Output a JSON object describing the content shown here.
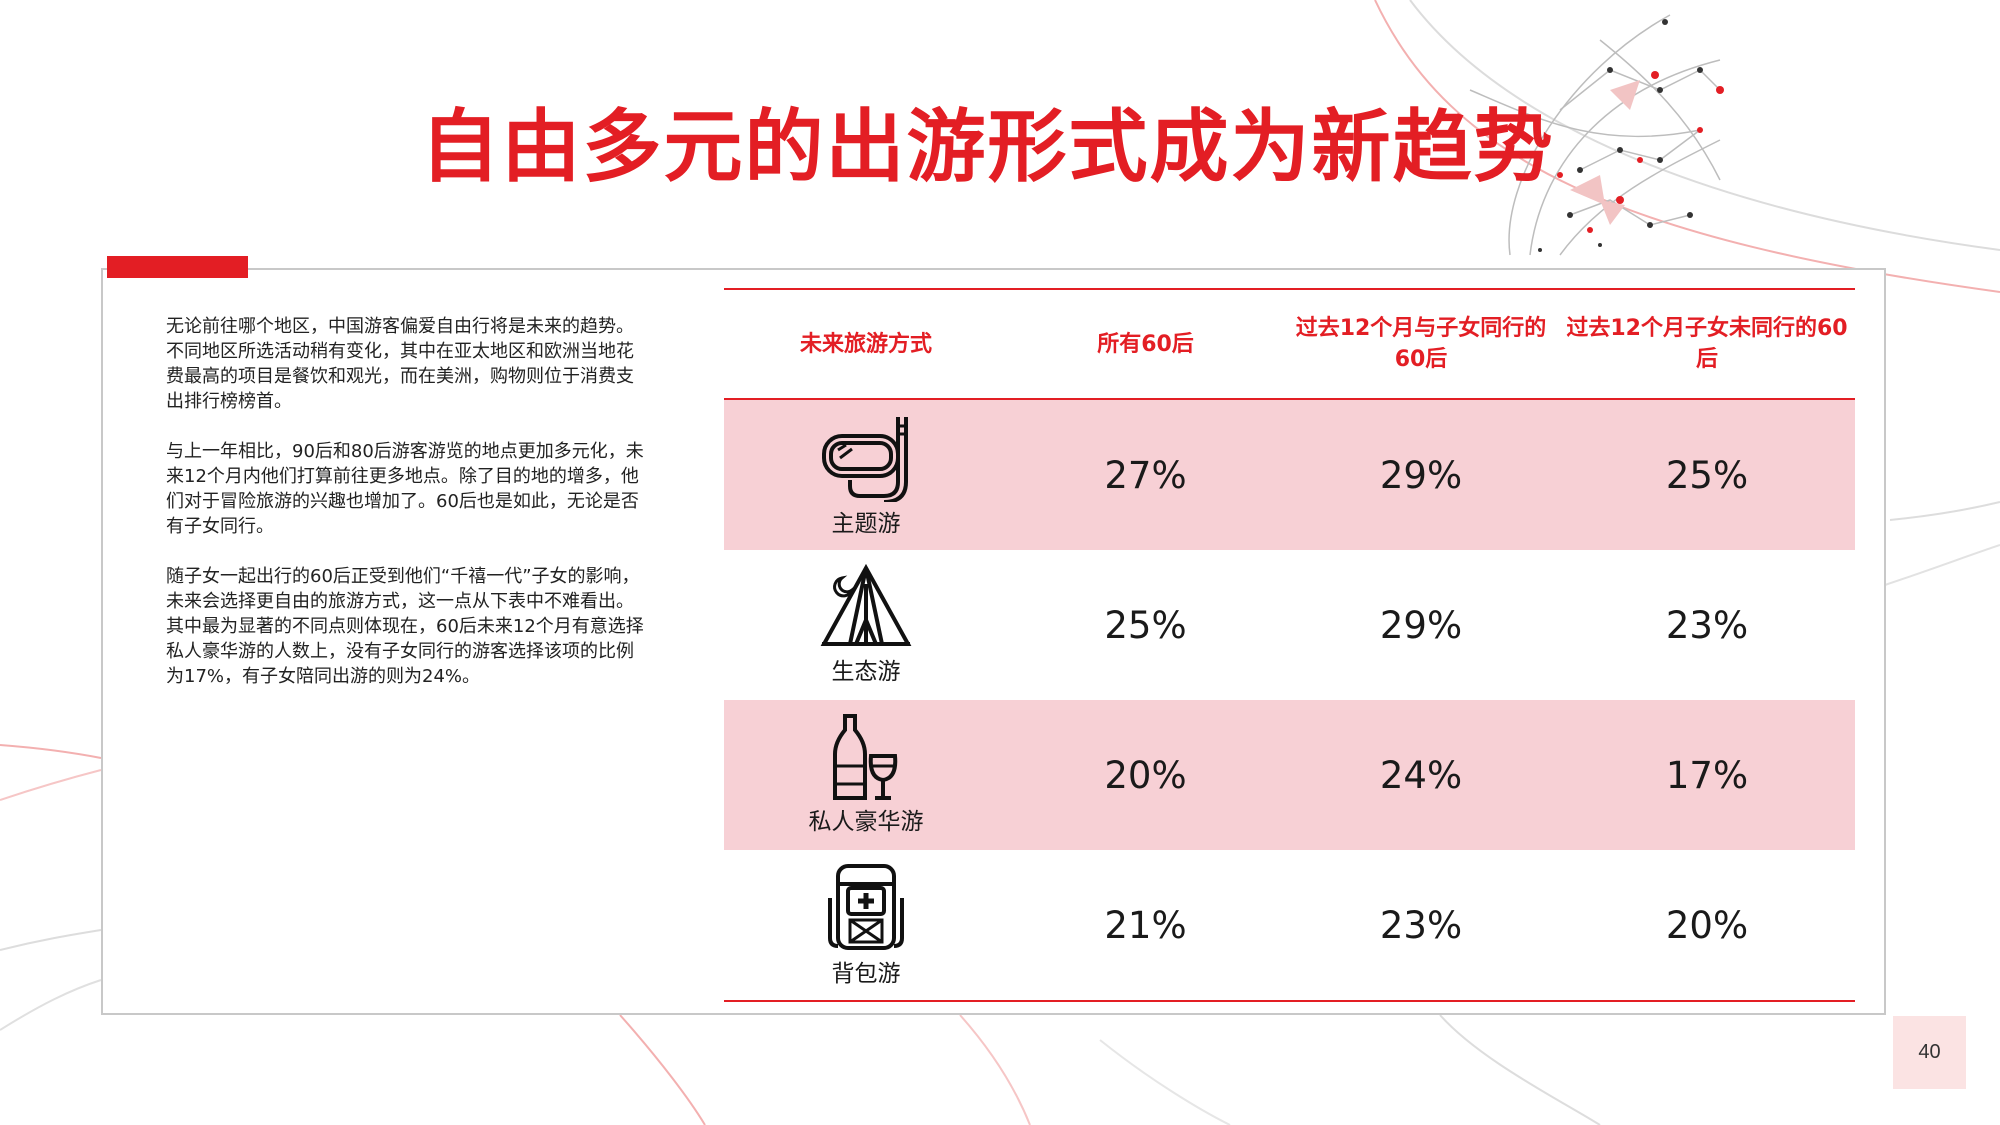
{
  "title": "自由多元的出游形式成为新趋势",
  "paragraphs": [
    "无论前往哪个地区，中国游客偏爱自由行将是未来的趋势。不同地区所选活动稍有变化，其中在亚太地区和欧洲当地花费最高的项目是餐饮和观光，而在美洲，购物则位于消费支出排行榜榜首。",
    "与上一年相比，90后和80后游客游览的地点更加多元化，未来12个月内他们打算前往更多地点。除了目的地的增多，他们对于冒险旅游的兴趣也增加了。60后也是如此，无论是否有子女同行。",
    "随子女一起出行的60后正受到他们“千禧一代”子女的影响，未来会选择更自由的旅游方式，这一点从下表中不难看出。其中最为显著的不同点则体现在，60后未来12个月有意选择私人豪华游的人数上，没有子女同行的游客选择该项的比例为17%，有子女陪同出游的则为24%。"
  ],
  "table": {
    "headers": [
      "未来旅游方式",
      "所有60后",
      "过去12个月与子女同行的60后",
      "过去12个月子女未同行的60后"
    ],
    "rows": [
      {
        "label": "主题游",
        "icon": "diving-mask-icon",
        "values": [
          "27%",
          "29%",
          "25%"
        ]
      },
      {
        "label": "生态游",
        "icon": "tent-icon",
        "values": [
          "25%",
          "29%",
          "23%"
        ]
      },
      {
        "label": "私人豪华游",
        "icon": "wine-icon",
        "values": [
          "20%",
          "24%",
          "17%"
        ]
      },
      {
        "label": "背包游",
        "icon": "backpack-icon",
        "values": [
          "21%",
          "23%",
          "20%"
        ]
      }
    ]
  },
  "page_number": "40",
  "colors": {
    "accent": "#e31e24",
    "row_shade": "#f7d0d5",
    "page_badge": "#fbe3e3"
  }
}
